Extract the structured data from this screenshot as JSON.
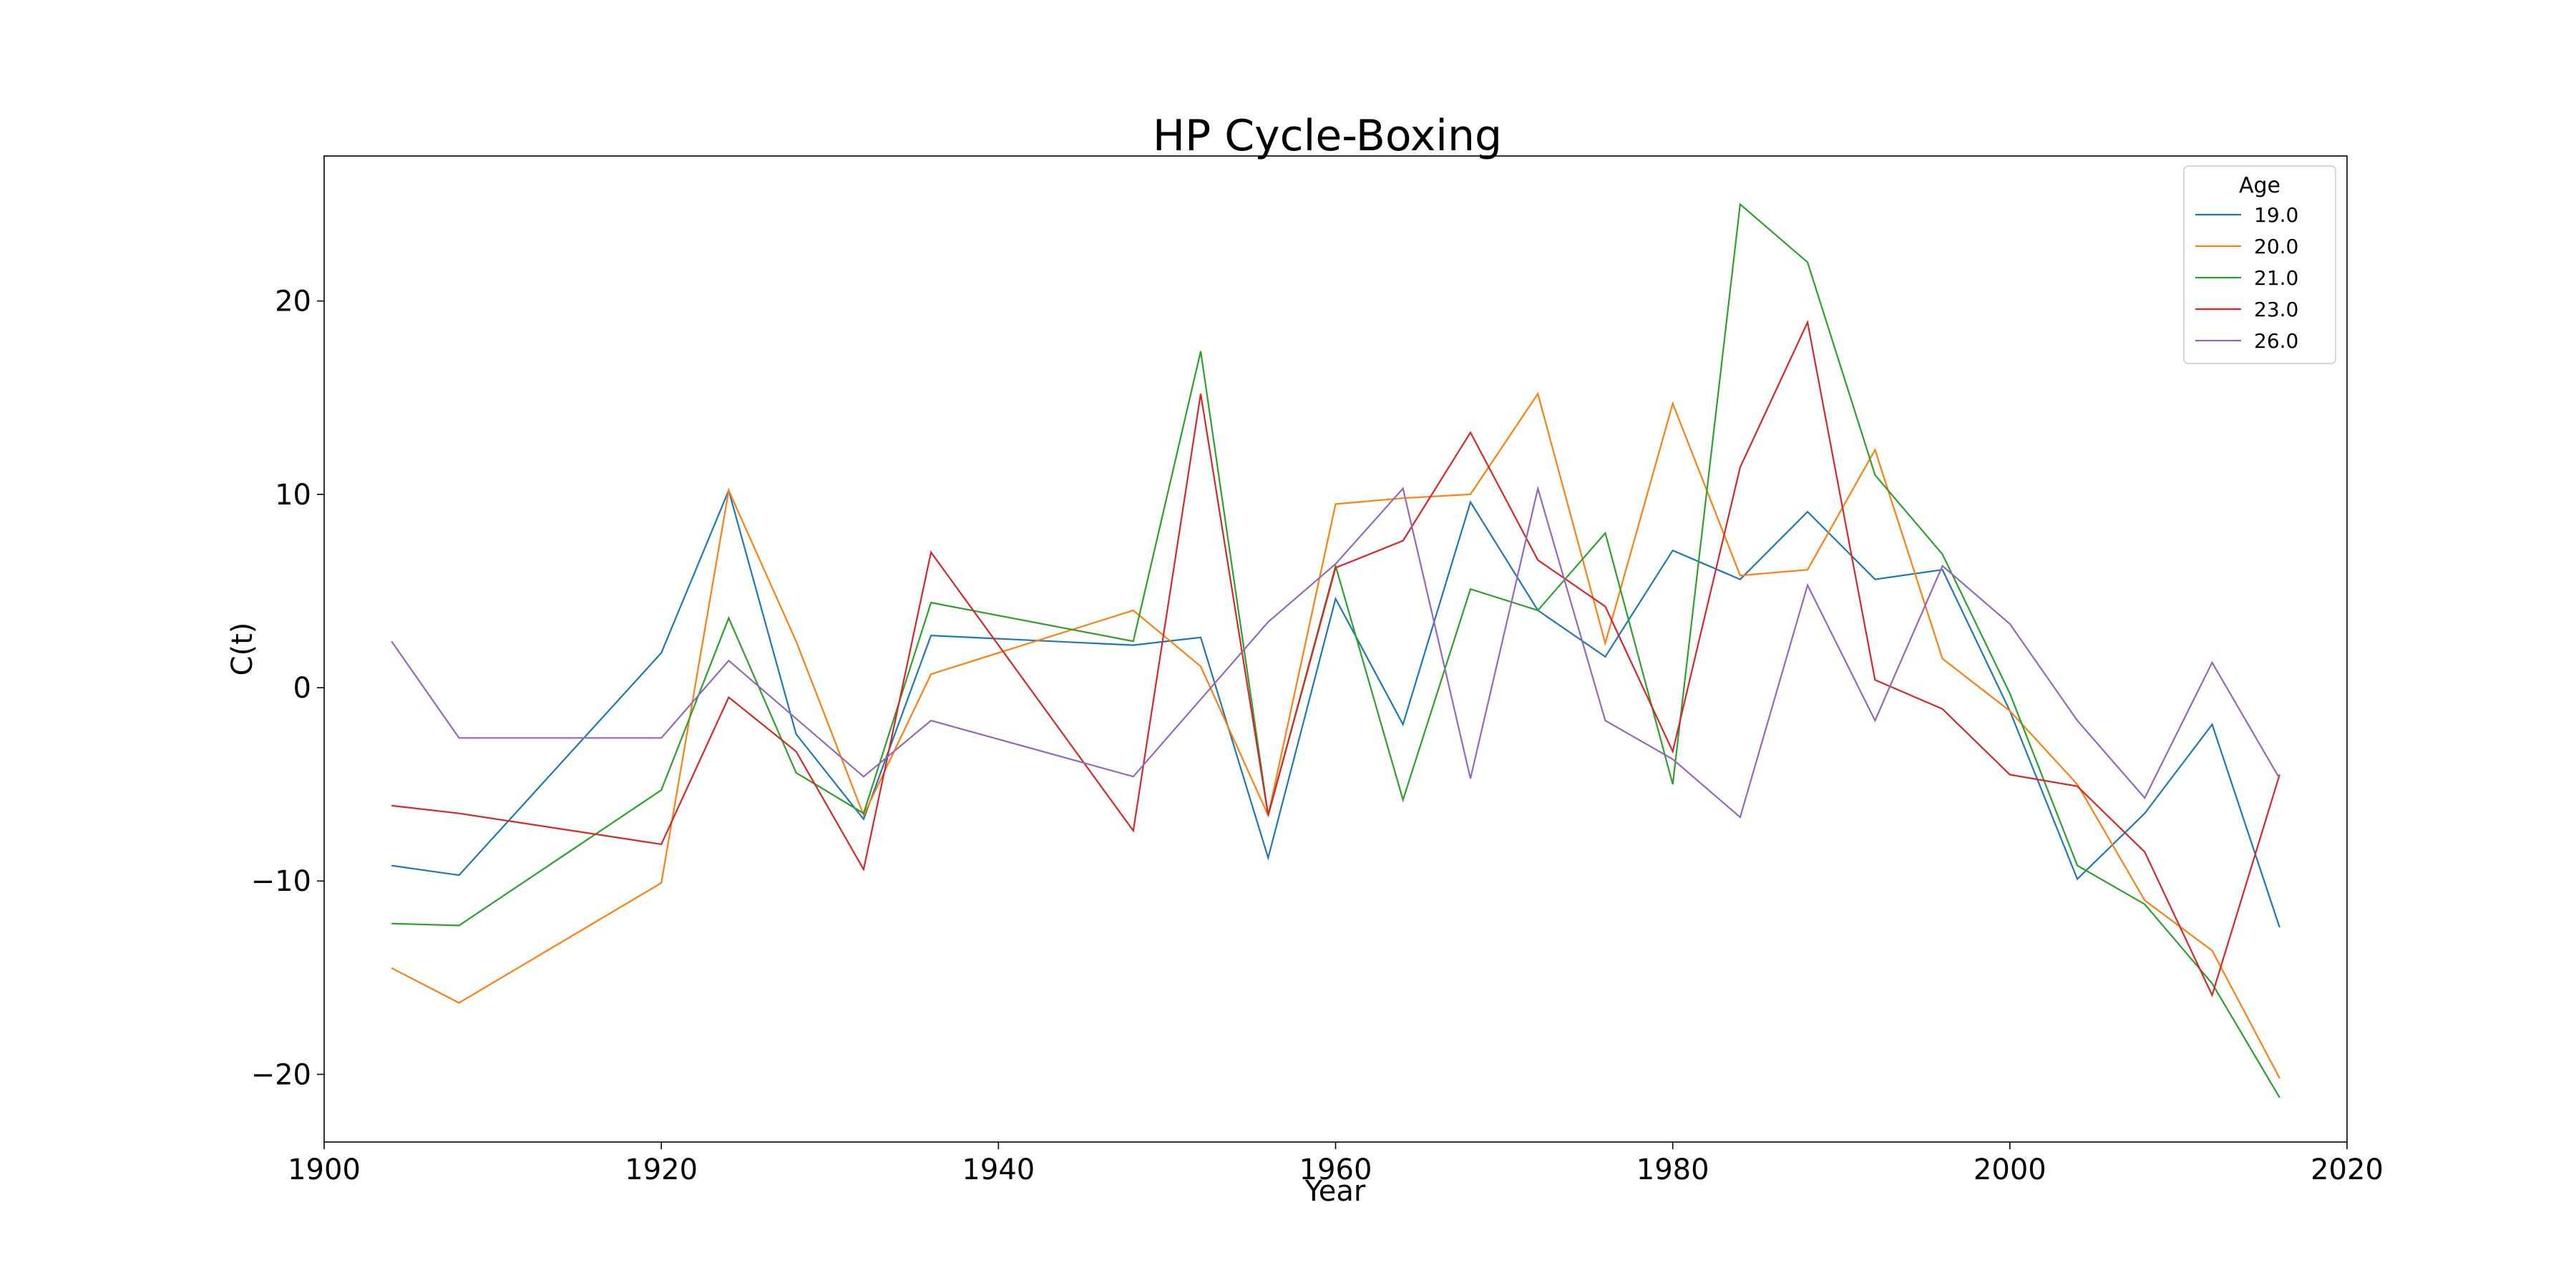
{
  "chart_data": {
    "type": "line",
    "title": "HP Cycle-Boxing",
    "xlabel": "Year",
    "ylabel": "C(t)",
    "xlim": [
      1900,
      2020
    ],
    "ylim": [
      -23.5,
      27.5
    ],
    "xticks": [
      1900,
      1920,
      1940,
      1960,
      1980,
      2000,
      2020
    ],
    "yticks": [
      -20,
      -10,
      0,
      10,
      20
    ],
    "grid": false,
    "legend": {
      "title": "Age",
      "placement": "top-right"
    },
    "x": [
      1904,
      1908,
      1920,
      1924,
      1928,
      1932,
      1936,
      1948,
      1952,
      1956,
      1960,
      1964,
      1968,
      1972,
      1976,
      1980,
      1984,
      1988,
      1992,
      1996,
      2000,
      2004,
      2008,
      2012,
      2016
    ],
    "series": [
      {
        "name": "19.0",
        "color": "#1f77b4",
        "values": [
          -9.2,
          -9.7,
          1.8,
          10.2,
          -2.4,
          -6.8,
          2.7,
          2.2,
          2.6,
          -8.8,
          4.6,
          -1.9,
          9.6,
          4.0,
          1.6,
          7.1,
          5.6,
          9.1,
          5.6,
          6.1,
          -1.2,
          -9.9,
          -6.5,
          -1.9,
          -12.4
        ]
      },
      {
        "name": "20.0",
        "color": "#ff7f0e",
        "values": [
          -14.5,
          -16.3,
          -10.1,
          10.2,
          2.4,
          -6.6,
          0.7,
          4.0,
          1.1,
          -6.6,
          9.5,
          9.8,
          10.0,
          15.2,
          2.3,
          14.7,
          5.8,
          6.1,
          12.3,
          1.5,
          -1.2,
          -5.0,
          -11.0,
          -13.6,
          -20.2
        ]
      },
      {
        "name": "21.0",
        "color": "#2ca02c",
        "values": [
          -12.2,
          -12.3,
          -5.3,
          3.6,
          -4.4,
          -6.5,
          4.4,
          2.4,
          17.4,
          -6.6,
          6.3,
          -5.8,
          5.1,
          4.0,
          8.0,
          -5.0,
          25.0,
          22.0,
          11.0,
          6.9,
          -0.3,
          -9.2,
          -11.2,
          -15.3,
          -21.2
        ]
      },
      {
        "name": "23.0",
        "color": "#d62728",
        "values": [
          -6.1,
          -6.5,
          -8.1,
          -0.5,
          -3.3,
          -9.4,
          7.0,
          -7.4,
          15.2,
          -6.6,
          6.2,
          7.6,
          13.2,
          6.6,
          4.2,
          -3.3,
          11.4,
          18.9,
          0.4,
          -1.1,
          -4.5,
          -5.1,
          -8.5,
          -15.9,
          -4.5
        ]
      },
      {
        "name": "26.0",
        "color": "#9467bd",
        "values": [
          2.4,
          -2.6,
          -2.6,
          1.4,
          -1.6,
          -4.6,
          -1.7,
          -4.6,
          -0.6,
          3.4,
          6.4,
          10.3,
          -4.7,
          10.3,
          -1.7,
          -3.7,
          -6.7,
          5.3,
          -1.7,
          6.3,
          3.3,
          -1.7,
          -5.7,
          1.3,
          -4.7
        ]
      }
    ]
  }
}
